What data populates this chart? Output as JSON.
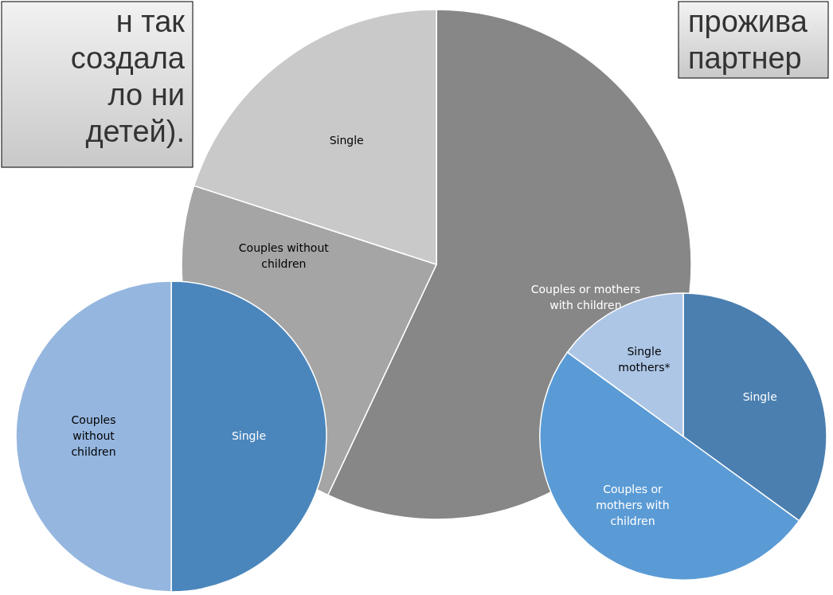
{
  "chart_data": [
    {
      "type": "pie",
      "categories": [
        "Couples or mothers with children",
        "Couples without children",
        "Single"
      ],
      "values": [
        57,
        23,
        20
      ],
      "colors": [
        "#878787",
        "#a5a5a5",
        "#c9c9c9"
      ],
      "annotations": [
        "н так\nсоздала\nло ни\nдетей).",
        "прожива\nпартнер"
      ]
    },
    {
      "type": "pie",
      "categories": [
        "Single",
        "Couples without children"
      ],
      "values": [
        50,
        50
      ],
      "colors": [
        "#4a86bc",
        "#95b6df"
      ]
    },
    {
      "type": "pie",
      "categories": [
        "Single",
        "Couples or mothers with children",
        "Single mothers*"
      ],
      "values": [
        35,
        50,
        15
      ],
      "colors": [
        "#4a7fb0",
        "#5b9bd5",
        "#adc6e6"
      ]
    }
  ]
}
